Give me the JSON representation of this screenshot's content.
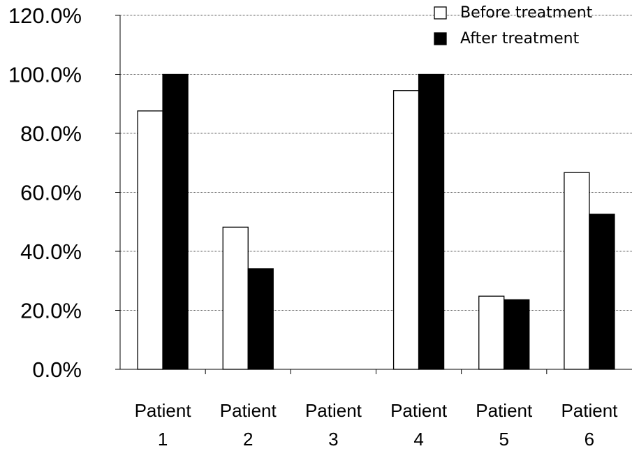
{
  "chart_data": {
    "type": "bar",
    "categories": [
      [
        "Patient",
        "1"
      ],
      [
        "Patient",
        "2"
      ],
      [
        "Patient",
        "3"
      ],
      [
        "Patient",
        "4"
      ],
      [
        "Patient",
        "5"
      ],
      [
        "Patient",
        "6"
      ]
    ],
    "series": [
      {
        "name": "Before treatment",
        "color": "#ffffff",
        "values": [
          87.6,
          48.2,
          0.0,
          94.5,
          24.8,
          66.7
        ]
      },
      {
        "name": "After treatment",
        "color": "#000000",
        "values": [
          100.0,
          34.1,
          0.0,
          100.0,
          23.6,
          52.6
        ]
      }
    ],
    "ylim": [
      0,
      120
    ],
    "yticks": [
      "0.0%",
      "20.0%",
      "40.0%",
      "60.0%",
      "80.0%",
      "100.0%",
      "120.0%"
    ],
    "grid": true,
    "legend": "top-right"
  }
}
